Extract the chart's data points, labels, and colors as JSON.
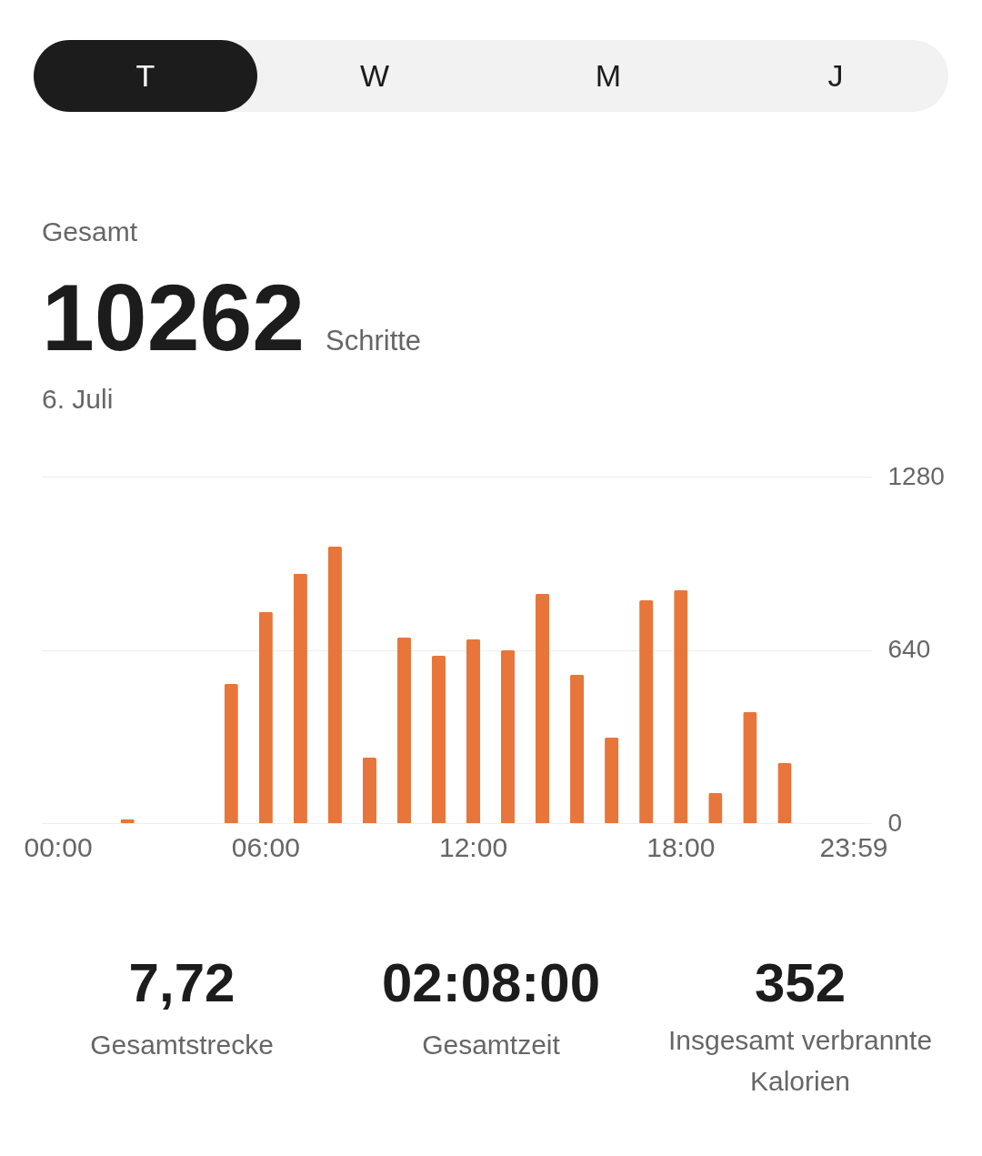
{
  "chart_data": {
    "type": "bar",
    "categories": [
      "00:00",
      null,
      null,
      null,
      null,
      null,
      "06:00",
      null,
      null,
      null,
      null,
      null,
      "12:00",
      null,
      null,
      null,
      null,
      null,
      "18:00",
      null,
      null,
      null,
      null,
      "23:59"
    ],
    "values": [
      0,
      0,
      15,
      0,
      0,
      514,
      780,
      921,
      1021,
      242,
      685,
      618,
      679,
      638,
      847,
      548,
      316,
      823,
      860,
      111,
      410,
      222,
      0,
      0
    ],
    "color": "#e8763a",
    "ylim": [
      0,
      1280
    ],
    "yticks": [
      0,
      640,
      1280
    ],
    "grid": "y",
    "annotations": [
      "T",
      "W",
      "M",
      "J",
      "Gesamt",
      "10262",
      "Schritte",
      "6. Juli",
      "7,72",
      "Gesamtstrecke",
      "02:08:00",
      "Gesamtzeit",
      "352",
      "Insgesamt verbrannte Kalorien"
    ]
  }
}
